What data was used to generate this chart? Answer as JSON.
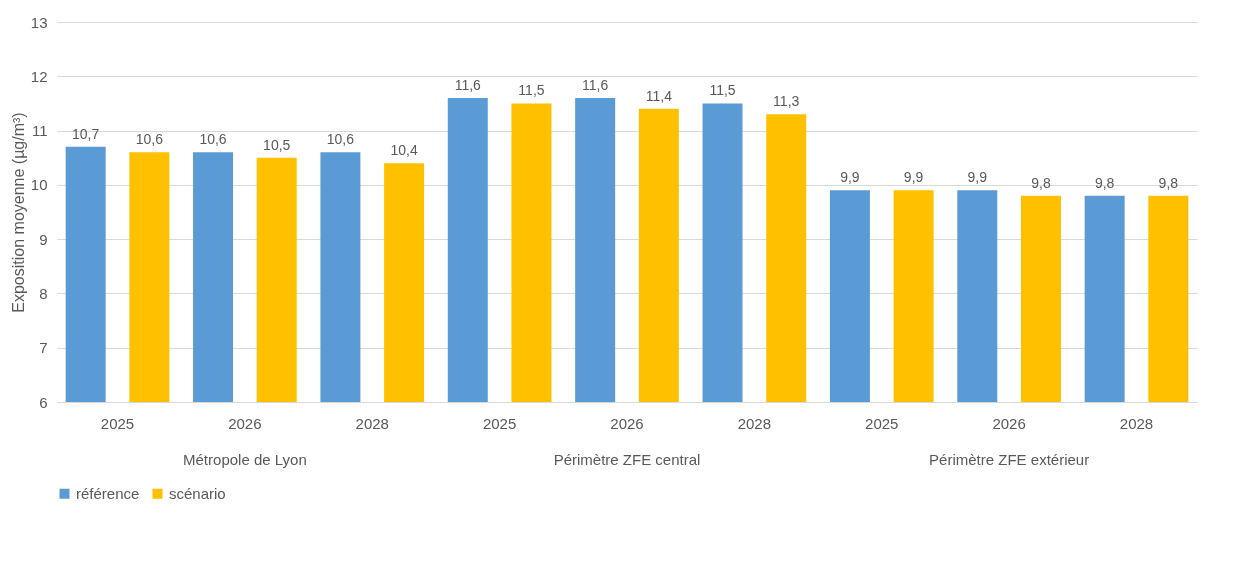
{
  "chart_data": {
    "type": "bar",
    "ylabel": "Exposition moyenne (µg/m³)",
    "categories": [
      "2025",
      "2026",
      "2028",
      "2025",
      "2026",
      "2028",
      "2025",
      "2026",
      "2028"
    ],
    "series": [
      {
        "name": "référence",
        "color": "#5b9bd5",
        "values": [
          10.7,
          10.6,
          10.6,
          11.6,
          11.6,
          11.5,
          9.9,
          9.9,
          9.8
        ],
        "value_labels": [
          "10,7",
          "10,6",
          "10,6",
          "11,6",
          "11,6",
          "11,5",
          "9,9",
          "9,9",
          "9,8"
        ]
      },
      {
        "name": "scénario",
        "color": "#ffc000",
        "values": [
          10.6,
          10.5,
          10.4,
          11.5,
          11.4,
          11.3,
          9.9,
          9.8,
          9.8
        ],
        "value_labels": [
          "10,6",
          "10,5",
          "10,4",
          "11,5",
          "11,4",
          "11,3",
          "9,9",
          "9,8",
          "9,8"
        ]
      }
    ],
    "annotations": [
      "Métropole de Lyon",
      "Périmètre ZFE central",
      "Périmètre ZFE extérieur"
    ],
    "ylim": [
      6,
      13
    ],
    "yticks": [
      6,
      7,
      8,
      9,
      10,
      11,
      12,
      13
    ],
    "grid": "y",
    "legend": "bottom"
  }
}
